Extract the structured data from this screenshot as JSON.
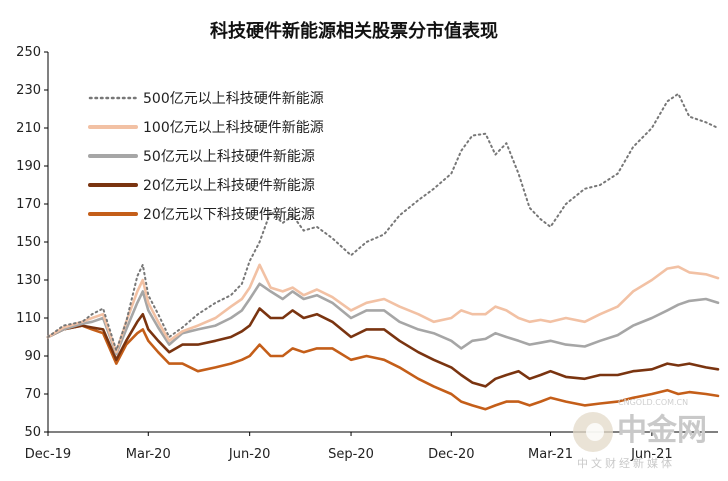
{
  "watermark": {
    "name": "中金网",
    "tagline": "中文财经新媒体",
    "url": "CNGOLD.COM.CN"
  },
  "chart_data": {
    "type": "line",
    "title": "科技硬件新能源相关股票分市值表现",
    "xlabel": "",
    "ylabel": "",
    "ylim": [
      50,
      250
    ],
    "yticks": [
      50,
      70,
      90,
      110,
      130,
      150,
      170,
      190,
      210,
      230,
      250
    ],
    "xlim": [
      "2019-12-01",
      "2021-07-31"
    ],
    "xticks": [
      {
        "label": "Dec-19",
        "date": "2019-12-01"
      },
      {
        "label": "Mar-20",
        "date": "2020-03-01"
      },
      {
        "label": "Jun-20",
        "date": "2020-06-01"
      },
      {
        "label": "Sep-20",
        "date": "2020-09-01"
      },
      {
        "label": "Dec-20",
        "date": "2020-12-01"
      },
      {
        "label": "Mar-21",
        "date": "2021-03-01"
      },
      {
        "label": "Jun-21",
        "date": "2021-06-01"
      }
    ],
    "grid": false,
    "legend_position": "top-left",
    "series": [
      {
        "name": "500亿元以上科技硬件新能源",
        "color": "#777777",
        "style": "dotted",
        "points": [
          [
            "2019-12-01",
            100
          ],
          [
            "2019-12-15",
            106
          ],
          [
            "2020-01-01",
            108
          ],
          [
            "2020-01-10",
            112
          ],
          [
            "2020-01-20",
            115
          ],
          [
            "2020-02-01",
            93
          ],
          [
            "2020-02-10",
            108
          ],
          [
            "2020-02-20",
            132
          ],
          [
            "2020-02-25",
            138
          ],
          [
            "2020-03-01",
            122
          ],
          [
            "2020-03-10",
            112
          ],
          [
            "2020-03-20",
            100
          ],
          [
            "2020-04-01",
            105
          ],
          [
            "2020-04-15",
            112
          ],
          [
            "2020-05-01",
            118
          ],
          [
            "2020-05-15",
            122
          ],
          [
            "2020-05-25",
            128
          ],
          [
            "2020-06-01",
            140
          ],
          [
            "2020-06-10",
            150
          ],
          [
            "2020-06-20",
            166
          ],
          [
            "2020-07-01",
            160
          ],
          [
            "2020-07-10",
            164
          ],
          [
            "2020-07-20",
            156
          ],
          [
            "2020-08-01",
            158
          ],
          [
            "2020-08-15",
            152
          ],
          [
            "2020-09-01",
            143
          ],
          [
            "2020-09-15",
            150
          ],
          [
            "2020-10-01",
            154
          ],
          [
            "2020-10-15",
            164
          ],
          [
            "2020-11-01",
            172
          ],
          [
            "2020-11-15",
            178
          ],
          [
            "2020-12-01",
            186
          ],
          [
            "2020-12-10",
            198
          ],
          [
            "2020-12-20",
            206
          ],
          [
            "2021-01-01",
            207
          ],
          [
            "2021-01-10",
            196
          ],
          [
            "2021-01-20",
            202
          ],
          [
            "2021-01-31",
            186
          ],
          [
            "2021-02-10",
            168
          ],
          [
            "2021-02-20",
            162
          ],
          [
            "2021-03-01",
            158
          ],
          [
            "2021-03-15",
            170
          ],
          [
            "2021-04-01",
            178
          ],
          [
            "2021-04-15",
            180
          ],
          [
            "2021-05-01",
            186
          ],
          [
            "2021-05-15",
            200
          ],
          [
            "2021-06-01",
            210
          ],
          [
            "2021-06-15",
            224
          ],
          [
            "2021-06-25",
            228
          ],
          [
            "2021-07-05",
            216
          ],
          [
            "2021-07-20",
            213
          ],
          [
            "2021-07-31",
            210
          ]
        ]
      },
      {
        "name": "100亿元以上科技硬件新能源",
        "color": "#f2c1a4",
        "style": "solid",
        "points": [
          [
            "2019-12-01",
            100
          ],
          [
            "2019-12-15",
            105
          ],
          [
            "2020-01-01",
            108
          ],
          [
            "2020-01-10",
            110
          ],
          [
            "2020-01-20",
            112
          ],
          [
            "2020-02-01",
            92
          ],
          [
            "2020-02-10",
            108
          ],
          [
            "2020-02-20",
            124
          ],
          [
            "2020-02-25",
            130
          ],
          [
            "2020-03-01",
            118
          ],
          [
            "2020-03-10",
            108
          ],
          [
            "2020-03-20",
            98
          ],
          [
            "2020-04-01",
            103
          ],
          [
            "2020-04-15",
            106
          ],
          [
            "2020-05-01",
            110
          ],
          [
            "2020-05-15",
            116
          ],
          [
            "2020-05-25",
            120
          ],
          [
            "2020-06-01",
            126
          ],
          [
            "2020-06-10",
            138
          ],
          [
            "2020-06-20",
            126
          ],
          [
            "2020-07-01",
            124
          ],
          [
            "2020-07-10",
            126
          ],
          [
            "2020-07-20",
            122
          ],
          [
            "2020-08-01",
            125
          ],
          [
            "2020-08-15",
            121
          ],
          [
            "2020-09-01",
            114
          ],
          [
            "2020-09-15",
            118
          ],
          [
            "2020-10-01",
            120
          ],
          [
            "2020-10-15",
            116
          ],
          [
            "2020-11-01",
            112
          ],
          [
            "2020-11-15",
            108
          ],
          [
            "2020-12-01",
            110
          ],
          [
            "2020-12-10",
            114
          ],
          [
            "2020-12-20",
            112
          ],
          [
            "2021-01-01",
            112
          ],
          [
            "2021-01-10",
            116
          ],
          [
            "2021-01-20",
            114
          ],
          [
            "2021-01-31",
            110
          ],
          [
            "2021-02-10",
            108
          ],
          [
            "2021-02-20",
            109
          ],
          [
            "2021-03-01",
            108
          ],
          [
            "2021-03-15",
            110
          ],
          [
            "2021-04-01",
            108
          ],
          [
            "2021-04-15",
            112
          ],
          [
            "2021-05-01",
            116
          ],
          [
            "2021-05-15",
            124
          ],
          [
            "2021-06-01",
            130
          ],
          [
            "2021-06-15",
            136
          ],
          [
            "2021-06-25",
            137
          ],
          [
            "2021-07-05",
            134
          ],
          [
            "2021-07-20",
            133
          ],
          [
            "2021-07-31",
            131
          ]
        ]
      },
      {
        "name": "50亿元以上科技硬件新能源",
        "color": "#a6a6a6",
        "style": "solid",
        "points": [
          [
            "2019-12-01",
            100
          ],
          [
            "2019-12-15",
            104
          ],
          [
            "2020-01-01",
            107
          ],
          [
            "2020-01-10",
            108
          ],
          [
            "2020-01-20",
            110
          ],
          [
            "2020-02-01",
            91
          ],
          [
            "2020-02-10",
            104
          ],
          [
            "2020-02-20",
            118
          ],
          [
            "2020-02-25",
            124
          ],
          [
            "2020-03-01",
            114
          ],
          [
            "2020-03-10",
            105
          ],
          [
            "2020-03-20",
            96
          ],
          [
            "2020-04-01",
            102
          ],
          [
            "2020-04-15",
            104
          ],
          [
            "2020-05-01",
            106
          ],
          [
            "2020-05-15",
            110
          ],
          [
            "2020-05-25",
            114
          ],
          [
            "2020-06-01",
            120
          ],
          [
            "2020-06-10",
            128
          ],
          [
            "2020-06-20",
            124
          ],
          [
            "2020-07-01",
            120
          ],
          [
            "2020-07-10",
            124
          ],
          [
            "2020-07-20",
            120
          ],
          [
            "2020-08-01",
            122
          ],
          [
            "2020-08-15",
            118
          ],
          [
            "2020-09-01",
            110
          ],
          [
            "2020-09-15",
            114
          ],
          [
            "2020-10-01",
            114
          ],
          [
            "2020-10-15",
            108
          ],
          [
            "2020-11-01",
            104
          ],
          [
            "2020-11-15",
            102
          ],
          [
            "2020-12-01",
            98
          ],
          [
            "2020-12-10",
            94
          ],
          [
            "2020-12-20",
            98
          ],
          [
            "2021-01-01",
            99
          ],
          [
            "2021-01-10",
            102
          ],
          [
            "2021-01-20",
            100
          ],
          [
            "2021-01-31",
            98
          ],
          [
            "2021-02-10",
            96
          ],
          [
            "2021-02-20",
            97
          ],
          [
            "2021-03-01",
            98
          ],
          [
            "2021-03-15",
            96
          ],
          [
            "2021-04-01",
            95
          ],
          [
            "2021-04-15",
            98
          ],
          [
            "2021-05-01",
            101
          ],
          [
            "2021-05-15",
            106
          ],
          [
            "2021-06-01",
            110
          ],
          [
            "2021-06-15",
            114
          ],
          [
            "2021-06-25",
            117
          ],
          [
            "2021-07-05",
            119
          ],
          [
            "2021-07-20",
            120
          ],
          [
            "2021-07-31",
            118
          ]
        ]
      },
      {
        "name": "20亿元以上科技硬件新能源",
        "color": "#7a3410",
        "style": "solid",
        "points": [
          [
            "2019-12-01",
            100
          ],
          [
            "2019-12-15",
            104
          ],
          [
            "2020-01-01",
            106
          ],
          [
            "2020-01-10",
            105
          ],
          [
            "2020-01-20",
            104
          ],
          [
            "2020-02-01",
            88
          ],
          [
            "2020-02-10",
            98
          ],
          [
            "2020-02-20",
            108
          ],
          [
            "2020-02-25",
            112
          ],
          [
            "2020-03-01",
            104
          ],
          [
            "2020-03-10",
            98
          ],
          [
            "2020-03-20",
            92
          ],
          [
            "2020-04-01",
            96
          ],
          [
            "2020-04-15",
            96
          ],
          [
            "2020-05-01",
            98
          ],
          [
            "2020-05-15",
            100
          ],
          [
            "2020-05-25",
            103
          ],
          [
            "2020-06-01",
            106
          ],
          [
            "2020-06-10",
            115
          ],
          [
            "2020-06-20",
            110
          ],
          [
            "2020-07-01",
            110
          ],
          [
            "2020-07-10",
            114
          ],
          [
            "2020-07-20",
            110
          ],
          [
            "2020-08-01",
            112
          ],
          [
            "2020-08-15",
            108
          ],
          [
            "2020-09-01",
            100
          ],
          [
            "2020-09-15",
            104
          ],
          [
            "2020-10-01",
            104
          ],
          [
            "2020-10-15",
            98
          ],
          [
            "2020-11-01",
            92
          ],
          [
            "2020-11-15",
            88
          ],
          [
            "2020-12-01",
            84
          ],
          [
            "2020-12-10",
            80
          ],
          [
            "2020-12-20",
            76
          ],
          [
            "2021-01-01",
            74
          ],
          [
            "2021-01-10",
            78
          ],
          [
            "2021-01-20",
            80
          ],
          [
            "2021-01-31",
            82
          ],
          [
            "2021-02-10",
            78
          ],
          [
            "2021-02-20",
            80
          ],
          [
            "2021-03-01",
            82
          ],
          [
            "2021-03-15",
            79
          ],
          [
            "2021-04-01",
            78
          ],
          [
            "2021-04-15",
            80
          ],
          [
            "2021-05-01",
            80
          ],
          [
            "2021-05-15",
            82
          ],
          [
            "2021-06-01",
            83
          ],
          [
            "2021-06-15",
            86
          ],
          [
            "2021-06-25",
            85
          ],
          [
            "2021-07-05",
            86
          ],
          [
            "2021-07-20",
            84
          ],
          [
            "2021-07-31",
            83
          ]
        ]
      },
      {
        "name": "20亿元以下科技硬件新能源",
        "color": "#c45e19",
        "style": "solid",
        "points": [
          [
            "2019-12-01",
            100
          ],
          [
            "2019-12-15",
            104
          ],
          [
            "2020-01-01",
            106
          ],
          [
            "2020-01-10",
            104
          ],
          [
            "2020-01-20",
            102
          ],
          [
            "2020-02-01",
            86
          ],
          [
            "2020-02-10",
            96
          ],
          [
            "2020-02-20",
            102
          ],
          [
            "2020-02-25",
            104
          ],
          [
            "2020-03-01",
            98
          ],
          [
            "2020-03-10",
            92
          ],
          [
            "2020-03-20",
            86
          ],
          [
            "2020-04-01",
            86
          ],
          [
            "2020-04-15",
            82
          ],
          [
            "2020-05-01",
            84
          ],
          [
            "2020-05-15",
            86
          ],
          [
            "2020-05-25",
            88
          ],
          [
            "2020-06-01",
            90
          ],
          [
            "2020-06-10",
            96
          ],
          [
            "2020-06-20",
            90
          ],
          [
            "2020-07-01",
            90
          ],
          [
            "2020-07-10",
            94
          ],
          [
            "2020-07-20",
            92
          ],
          [
            "2020-08-01",
            94
          ],
          [
            "2020-08-15",
            94
          ],
          [
            "2020-09-01",
            88
          ],
          [
            "2020-09-15",
            90
          ],
          [
            "2020-10-01",
            88
          ],
          [
            "2020-10-15",
            84
          ],
          [
            "2020-11-01",
            78
          ],
          [
            "2020-11-15",
            74
          ],
          [
            "2020-12-01",
            70
          ],
          [
            "2020-12-10",
            66
          ],
          [
            "2020-12-20",
            64
          ],
          [
            "2021-01-01",
            62
          ],
          [
            "2021-01-10",
            64
          ],
          [
            "2021-01-20",
            66
          ],
          [
            "2021-01-31",
            66
          ],
          [
            "2021-02-10",
            64
          ],
          [
            "2021-02-20",
            66
          ],
          [
            "2021-03-01",
            68
          ],
          [
            "2021-03-15",
            66
          ],
          [
            "2021-04-01",
            64
          ],
          [
            "2021-04-15",
            65
          ],
          [
            "2021-05-01",
            66
          ],
          [
            "2021-05-15",
            68
          ],
          [
            "2021-06-01",
            70
          ],
          [
            "2021-06-15",
            72
          ],
          [
            "2021-06-25",
            70
          ],
          [
            "2021-07-05",
            71
          ],
          [
            "2021-07-20",
            70
          ],
          [
            "2021-07-31",
            69
          ]
        ]
      }
    ]
  }
}
